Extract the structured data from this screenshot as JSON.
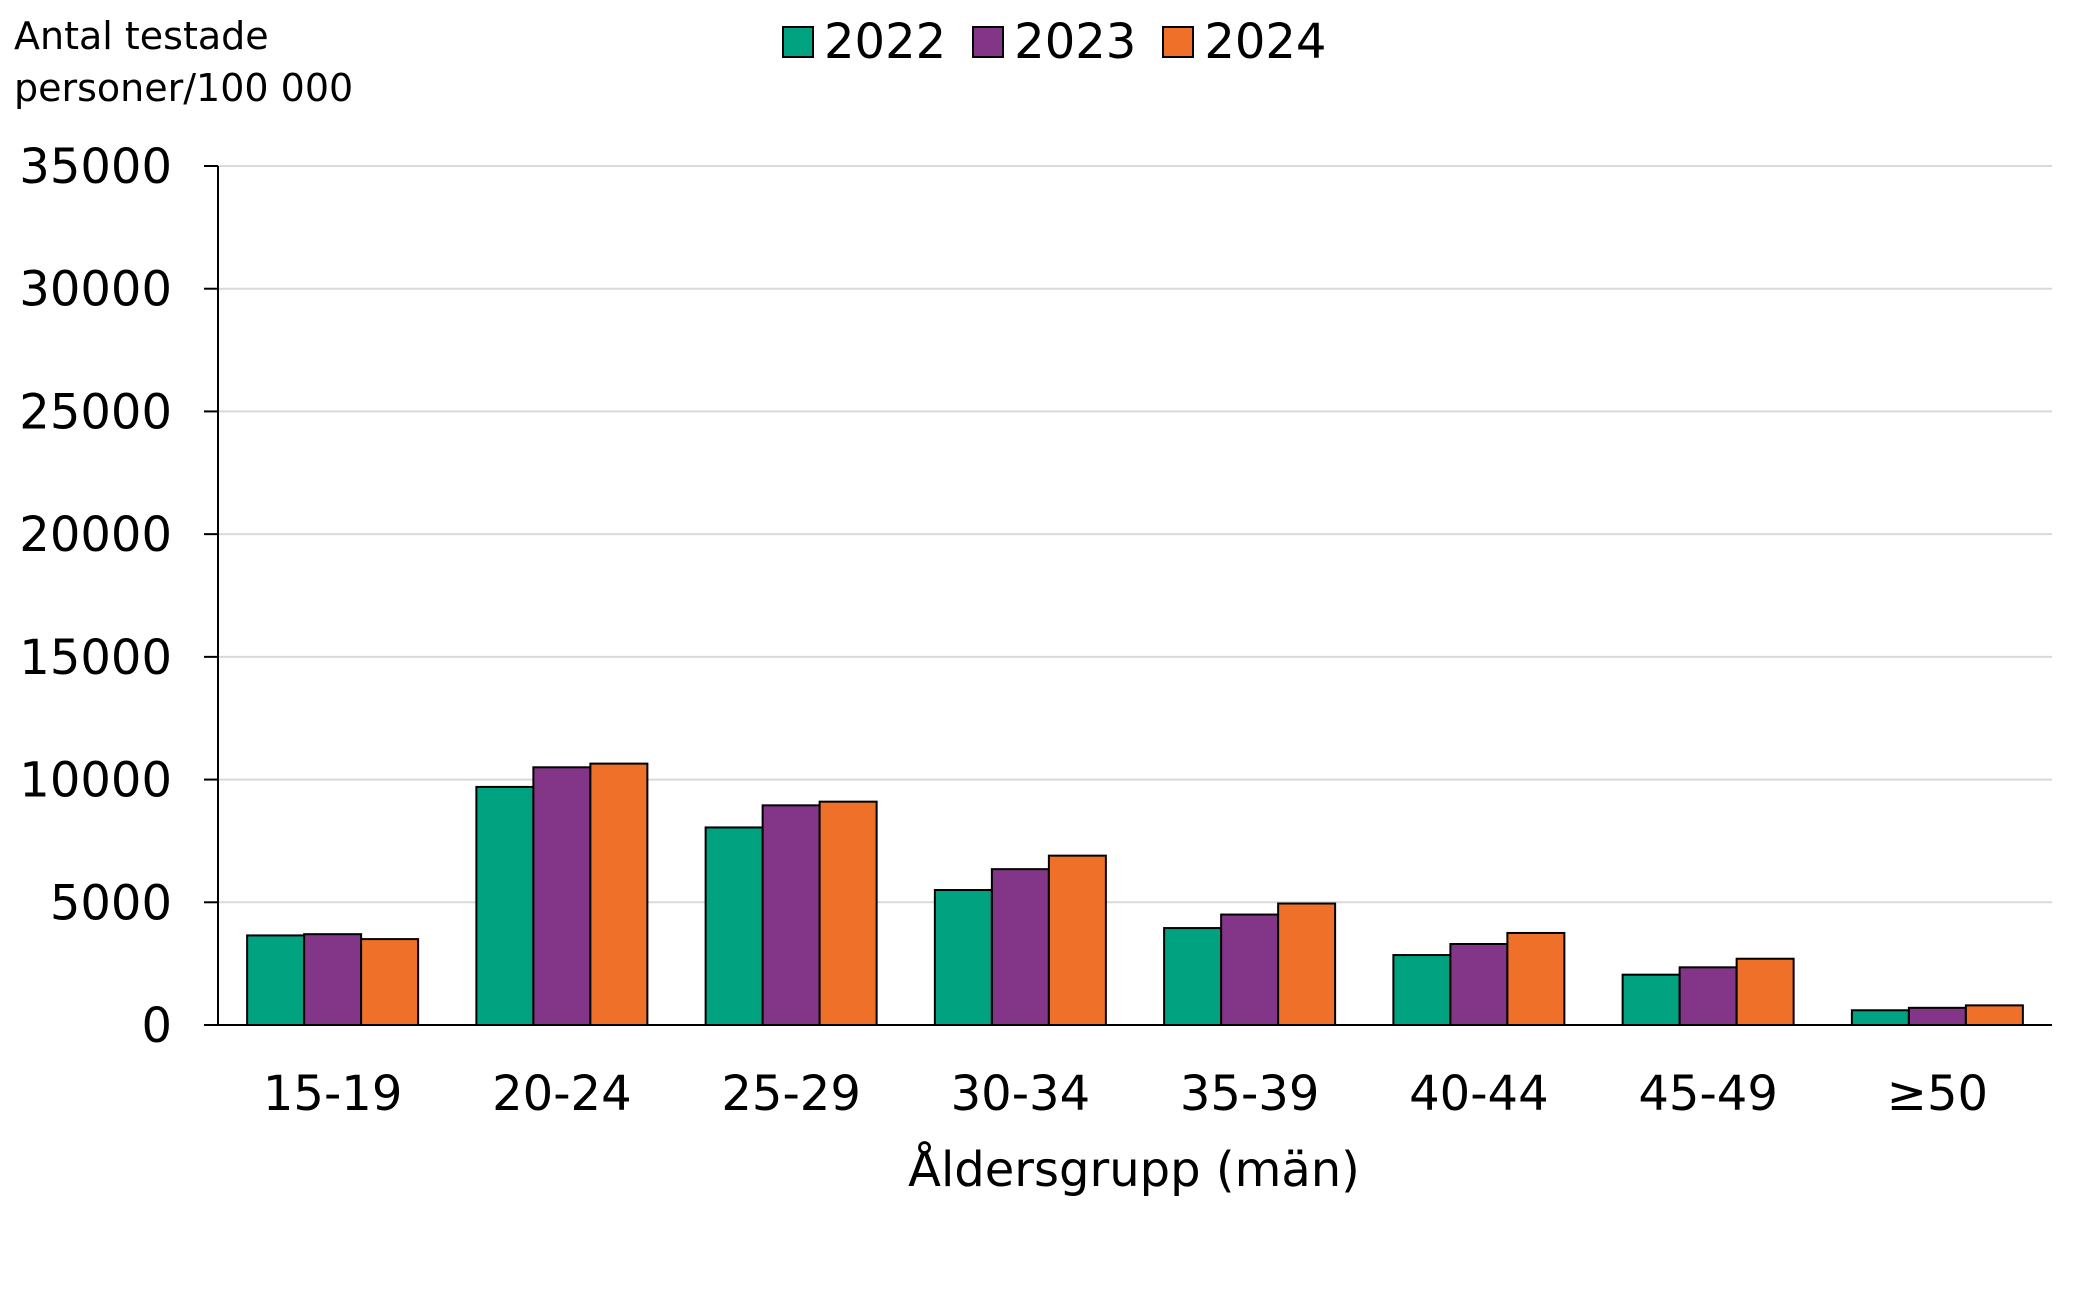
{
  "chart_data": {
    "type": "bar",
    "title": "",
    "ylabel_lines": [
      "Antal testade",
      "personer/100 000"
    ],
    "xlabel": "Åldersgrupp (män)",
    "categories": [
      "15-19",
      "20-24",
      "25-29",
      "30-34",
      "35-39",
      "40-44",
      "45-49",
      "≥50"
    ],
    "series": [
      {
        "name": "2022",
        "color": "#00a27f",
        "values": [
          3650,
          9700,
          8050,
          5500,
          3950,
          2850,
          2050,
          600
        ]
      },
      {
        "name": "2023",
        "color": "#833688",
        "values": [
          3700,
          10500,
          8950,
          6350,
          4500,
          3300,
          2350,
          700
        ]
      },
      {
        "name": "2024",
        "color": "#ef7129",
        "values": [
          3500,
          10650,
          9100,
          6900,
          4950,
          3750,
          2700,
          800
        ]
      }
    ],
    "ylim": [
      0,
      35000
    ],
    "yticks": [
      0,
      5000,
      10000,
      15000,
      20000,
      25000,
      30000,
      35000
    ],
    "ytick_labels": [
      "0",
      "5000",
      "10000",
      "15000",
      "20000",
      "25000",
      "30000",
      "35000"
    ],
    "grid": true,
    "legend_position": "top-center"
  }
}
